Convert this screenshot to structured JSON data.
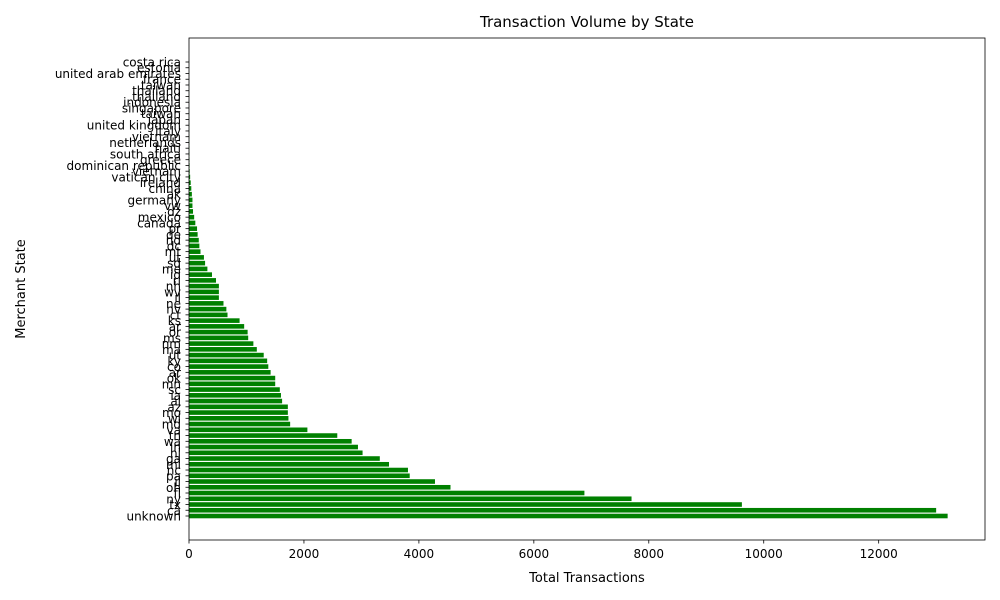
{
  "chart_data": {
    "type": "bar",
    "orientation": "horizontal",
    "title": "Transaction Volume by State",
    "xlabel": "Total Transactions",
    "ylabel": "Merchant State",
    "bar_color": "#008000",
    "xlim": [
      0,
      13850
    ],
    "x_ticks": [
      0,
      2000,
      4000,
      6000,
      8000,
      10000,
      12000
    ],
    "grid": false,
    "categories": [
      "unknown",
      "ca",
      "tx",
      "ny",
      "fl",
      "oh",
      "il",
      "pa",
      "nc",
      "mi",
      "ga",
      "nj",
      "in",
      "wa",
      "tn",
      "va",
      "md",
      "wi",
      "mo",
      "az",
      "al",
      "ia",
      "sc",
      "mn",
      "ok",
      "ar",
      "co",
      "ky",
      "ut",
      "ma",
      "nm",
      "ms",
      "or",
      "ar",
      "ks",
      "ct",
      "nv",
      "ne",
      "il",
      "wv",
      "nh",
      "ri",
      "id",
      "me",
      "sd",
      "ut",
      "mt",
      "dc",
      "nd",
      "de",
      "pr",
      "canada",
      "mexico",
      "dz",
      "vw",
      "germany",
      "ak",
      "china",
      "ireland",
      "vatican city",
      "vietnam",
      "dominican republic",
      "greece",
      "south africa",
      "haiti",
      "netherlands",
      "vietnam",
      "italy",
      "united kingdom",
      "japan",
      "taiwan",
      "singapore",
      "indonesia",
      "thailand",
      "thailand",
      "taiwan",
      "france",
      "united arab emirates",
      "estonia",
      "costa rica"
    ],
    "values": [
      13200,
      13000,
      9620,
      7700,
      6880,
      4550,
      4280,
      3840,
      3810,
      3480,
      3320,
      3020,
      2940,
      2830,
      2580,
      2060,
      1760,
      1730,
      1720,
      1720,
      1620,
      1600,
      1580,
      1500,
      1500,
      1420,
      1380,
      1360,
      1300,
      1180,
      1120,
      1030,
      1020,
      960,
      880,
      670,
      650,
      600,
      520,
      520,
      520,
      470,
      400,
      320,
      280,
      260,
      200,
      180,
      170,
      150,
      140,
      110,
      90,
      70,
      60,
      60,
      50,
      40,
      30,
      20,
      12,
      10,
      8,
      6,
      5,
      4,
      4,
      3,
      3,
      2,
      2,
      2,
      1,
      1,
      1,
      1,
      1,
      1,
      1,
      1
    ]
  }
}
